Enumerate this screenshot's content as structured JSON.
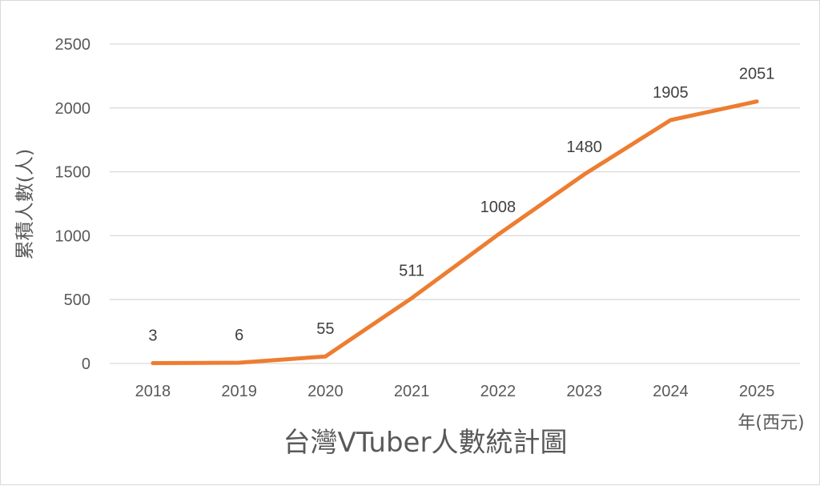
{
  "chart_data": {
    "type": "line",
    "title": "台灣VTuber人數統計圖",
    "xlabel": "年(西元)",
    "ylabel": "累積人數(人)",
    "categories": [
      "2018",
      "2019",
      "2020",
      "2021",
      "2022",
      "2023",
      "2024",
      "2025"
    ],
    "series": [
      {
        "values": [
          3,
          6,
          55,
          511,
          1008,
          1480,
          1905,
          2051
        ],
        "color": "#ED7D31"
      }
    ],
    "ylim": [
      0,
      2500
    ],
    "yticks": [
      0,
      500,
      1000,
      1500,
      2000,
      2500
    ],
    "grid": true,
    "data_labels": true,
    "legend": "none"
  }
}
